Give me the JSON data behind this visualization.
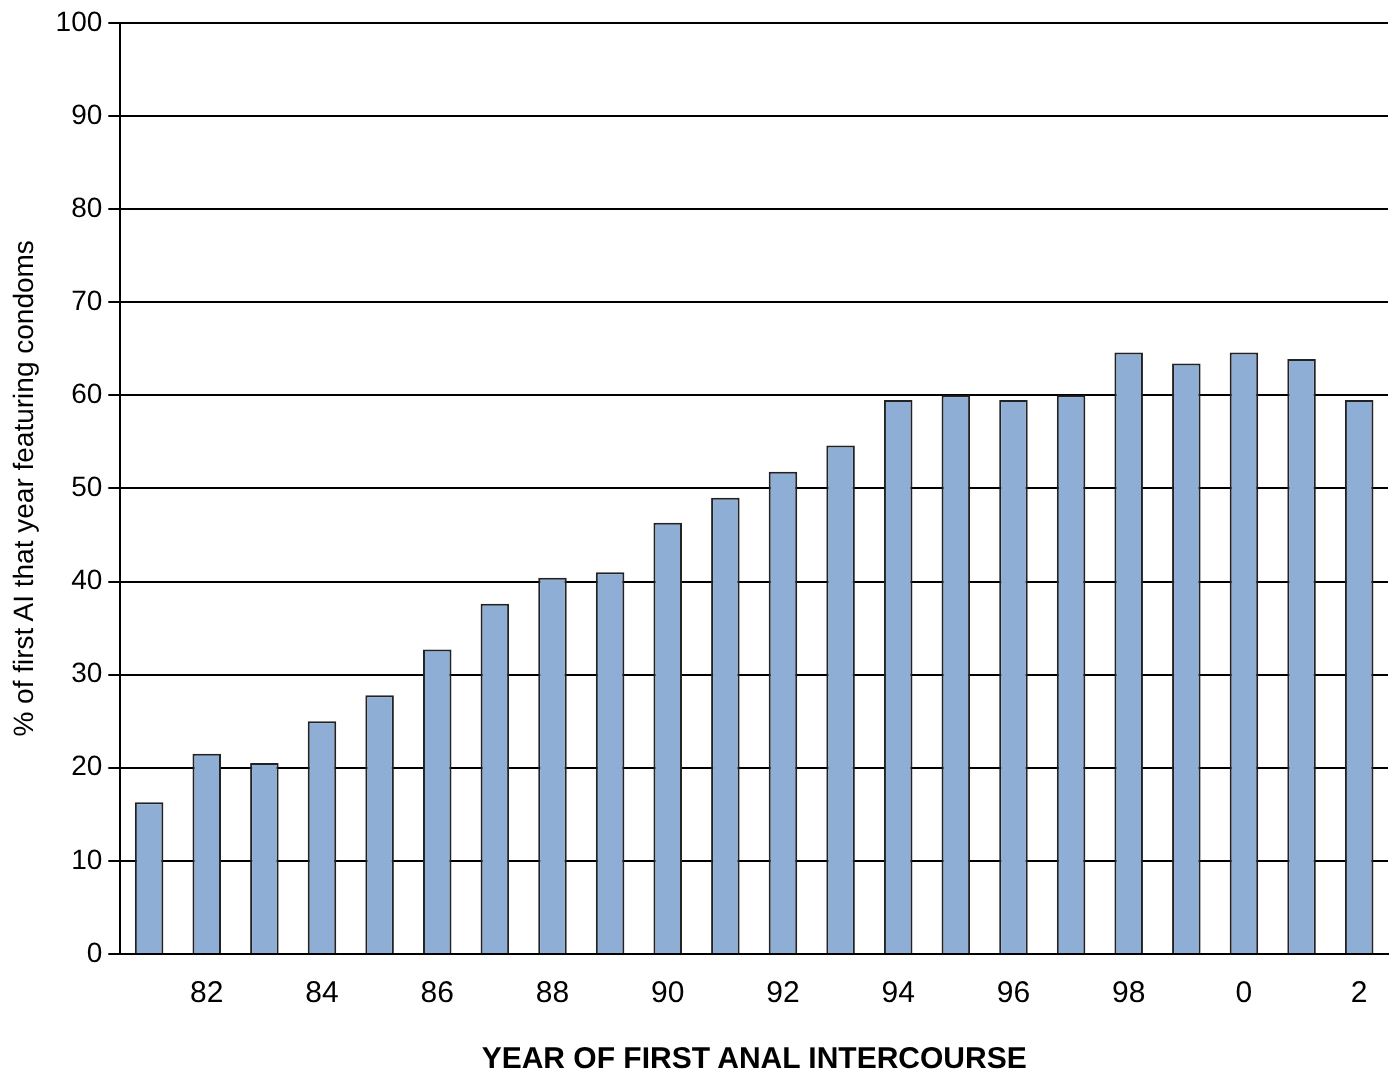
{
  "chart_data": {
    "type": "bar",
    "xlabel": "YEAR OF FIRST ANAL INTERCOURSE",
    "ylabel": "% of first AI that year featuring condoms",
    "categories": [
      null,
      "82",
      null,
      "84",
      null,
      "86",
      null,
      "88",
      null,
      "90",
      null,
      "92",
      null,
      "94",
      null,
      "96",
      null,
      "98",
      null,
      "0",
      null,
      "2"
    ],
    "values": [
      16.3,
      21.5,
      20.5,
      25,
      27.8,
      32.7,
      37.6,
      40.4,
      41,
      46.3,
      49,
      51.8,
      54.6,
      59.5,
      60,
      59.5,
      60,
      64.6,
      63.4,
      64.6,
      63.9,
      59.5
    ],
    "color": "#8eaed6",
    "ylim": [
      0,
      100
    ],
    "yticks": [
      0,
      10,
      20,
      30,
      40,
      50,
      60,
      70,
      80,
      90,
      100
    ],
    "grid": "y"
  }
}
